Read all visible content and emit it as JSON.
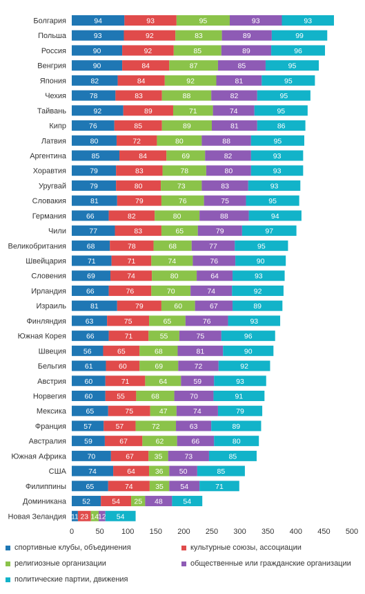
{
  "chart_data": {
    "type": "bar",
    "orientation": "horizontal",
    "stacked": true,
    "categories": [
      "Болгария",
      "Польша",
      "Россия",
      "Венгрия",
      "Япония",
      "Чехия",
      "Тайвань",
      "Кипр",
      "Латвия",
      "Аргентина",
      "Хоравтия",
      "Уругвай",
      "Словакия",
      "Германия",
      "Чили",
      "Великобритания",
      "Швейцария",
      "Словения",
      "Ирландия",
      "Израиль",
      "Финляндия",
      "Южная Корея",
      "Швеция",
      "Бельгия",
      "Австрия",
      "Норвегия",
      "Мексика",
      "Франция",
      "Австралия",
      "Южная Африка",
      "США",
      "Филиппины",
      "Доминикана",
      "Новая Зеландия"
    ],
    "series": [
      {
        "name": "спортивные клубы, объединения",
        "color": "#1f77b4",
        "values": [
          94,
          93,
          90,
          90,
          82,
          78,
          92,
          76,
          80,
          85,
          79,
          79,
          81,
          66,
          77,
          68,
          71,
          69,
          66,
          81,
          63,
          66,
          56,
          61,
          60,
          60,
          65,
          57,
          59,
          70,
          74,
          65,
          52,
          11
        ]
      },
      {
        "name": "культурные союзы, ассоциации",
        "color": "#e04b4b",
        "values": [
          93,
          92,
          92,
          84,
          84,
          83,
          89,
          85,
          72,
          84,
          83,
          80,
          79,
          82,
          83,
          78,
          71,
          74,
          76,
          79,
          75,
          71,
          65,
          60,
          71,
          55,
          75,
          57,
          67,
          67,
          64,
          74,
          54,
          23
        ]
      },
      {
        "name": "религиозные организации",
        "color": "#8bc34a",
        "values": [
          95,
          83,
          85,
          87,
          92,
          88,
          71,
          89,
          80,
          69,
          78,
          73,
          76,
          80,
          65,
          68,
          74,
          80,
          70,
          60,
          65,
          55,
          68,
          69,
          64,
          68,
          47,
          72,
          62,
          35,
          36,
          35,
          25,
          14
        ]
      },
      {
        "name": "общественные или гражданские организации",
        "color": "#8e5bb5",
        "values": [
          93,
          89,
          89,
          85,
          81,
          82,
          74,
          81,
          88,
          82,
          80,
          83,
          75,
          88,
          79,
          77,
          76,
          64,
          74,
          67,
          76,
          75,
          81,
          72,
          59,
          70,
          74,
          63,
          66,
          73,
          50,
          54,
          48,
          12
        ]
      },
      {
        "name": "политические партии, движения",
        "color": "#12b3c9",
        "values": [
          93,
          99,
          96,
          95,
          95,
          95,
          95,
          86,
          95,
          93,
          93,
          93,
          95,
          94,
          97,
          95,
          90,
          93,
          92,
          89,
          93,
          96,
          90,
          92,
          93,
          91,
          79,
          89,
          80,
          85,
          85,
          71,
          54,
          54
        ]
      }
    ],
    "xlim": [
      0,
      500
    ],
    "xticks": [
      "0",
      "50",
      "100",
      "150",
      "200",
      "250",
      "300",
      "350",
      "400",
      "450",
      "500"
    ],
    "legend_position": "bottom",
    "title": "",
    "xlabel": "",
    "ylabel": ""
  }
}
